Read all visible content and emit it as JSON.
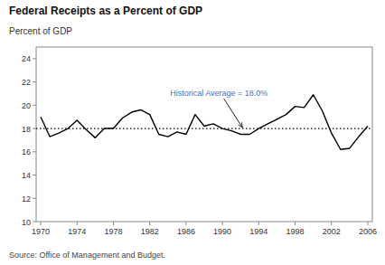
{
  "chart_data": {
    "type": "line",
    "title": "Federal Receipts as a Percent of GDP",
    "ylabel": "Percent of GDP",
    "source": "Source:  Office of Management and Budget.",
    "x": [
      1970,
      1971,
      1972,
      1973,
      1974,
      1975,
      1976,
      1977,
      1978,
      1979,
      1980,
      1981,
      1982,
      1983,
      1984,
      1985,
      1986,
      1987,
      1988,
      1989,
      1990,
      1991,
      1992,
      1993,
      1994,
      1995,
      1996,
      1997,
      1998,
      1999,
      2000,
      2001,
      2002,
      2003,
      2004,
      2005,
      2006
    ],
    "series": [
      {
        "color": "#000000",
        "values": [
          19.0,
          17.3,
          17.6,
          18.0,
          18.7,
          17.9,
          17.2,
          18.0,
          18.0,
          18.9,
          19.4,
          19.6,
          19.2,
          17.5,
          17.3,
          17.7,
          17.5,
          19.2,
          18.2,
          18.4,
          18.0,
          17.8,
          17.5,
          17.5,
          18.0,
          18.4,
          18.8,
          19.2,
          19.9,
          19.8,
          20.9,
          19.5,
          17.6,
          16.2,
          16.3,
          17.3,
          18.2
        ]
      }
    ],
    "reference_lines": [
      {
        "value": 18.0,
        "color": "#000000",
        "line_style": "dotted"
      }
    ],
    "annotations": [
      {
        "text": "Historical Average = 18.0%",
        "x": 1992.2,
        "y": 18.0,
        "color": "#4472C4"
      }
    ],
    "xlim": [
      1969.5,
      2006.5
    ],
    "xticks": [
      1970,
      1974,
      1978,
      1982,
      1986,
      1990,
      1994,
      1998,
      2002,
      2006
    ],
    "ylim": [
      10,
      25
    ],
    "yticks": [
      10,
      12,
      14,
      16,
      18,
      20,
      22,
      24
    ],
    "grid": false
  }
}
